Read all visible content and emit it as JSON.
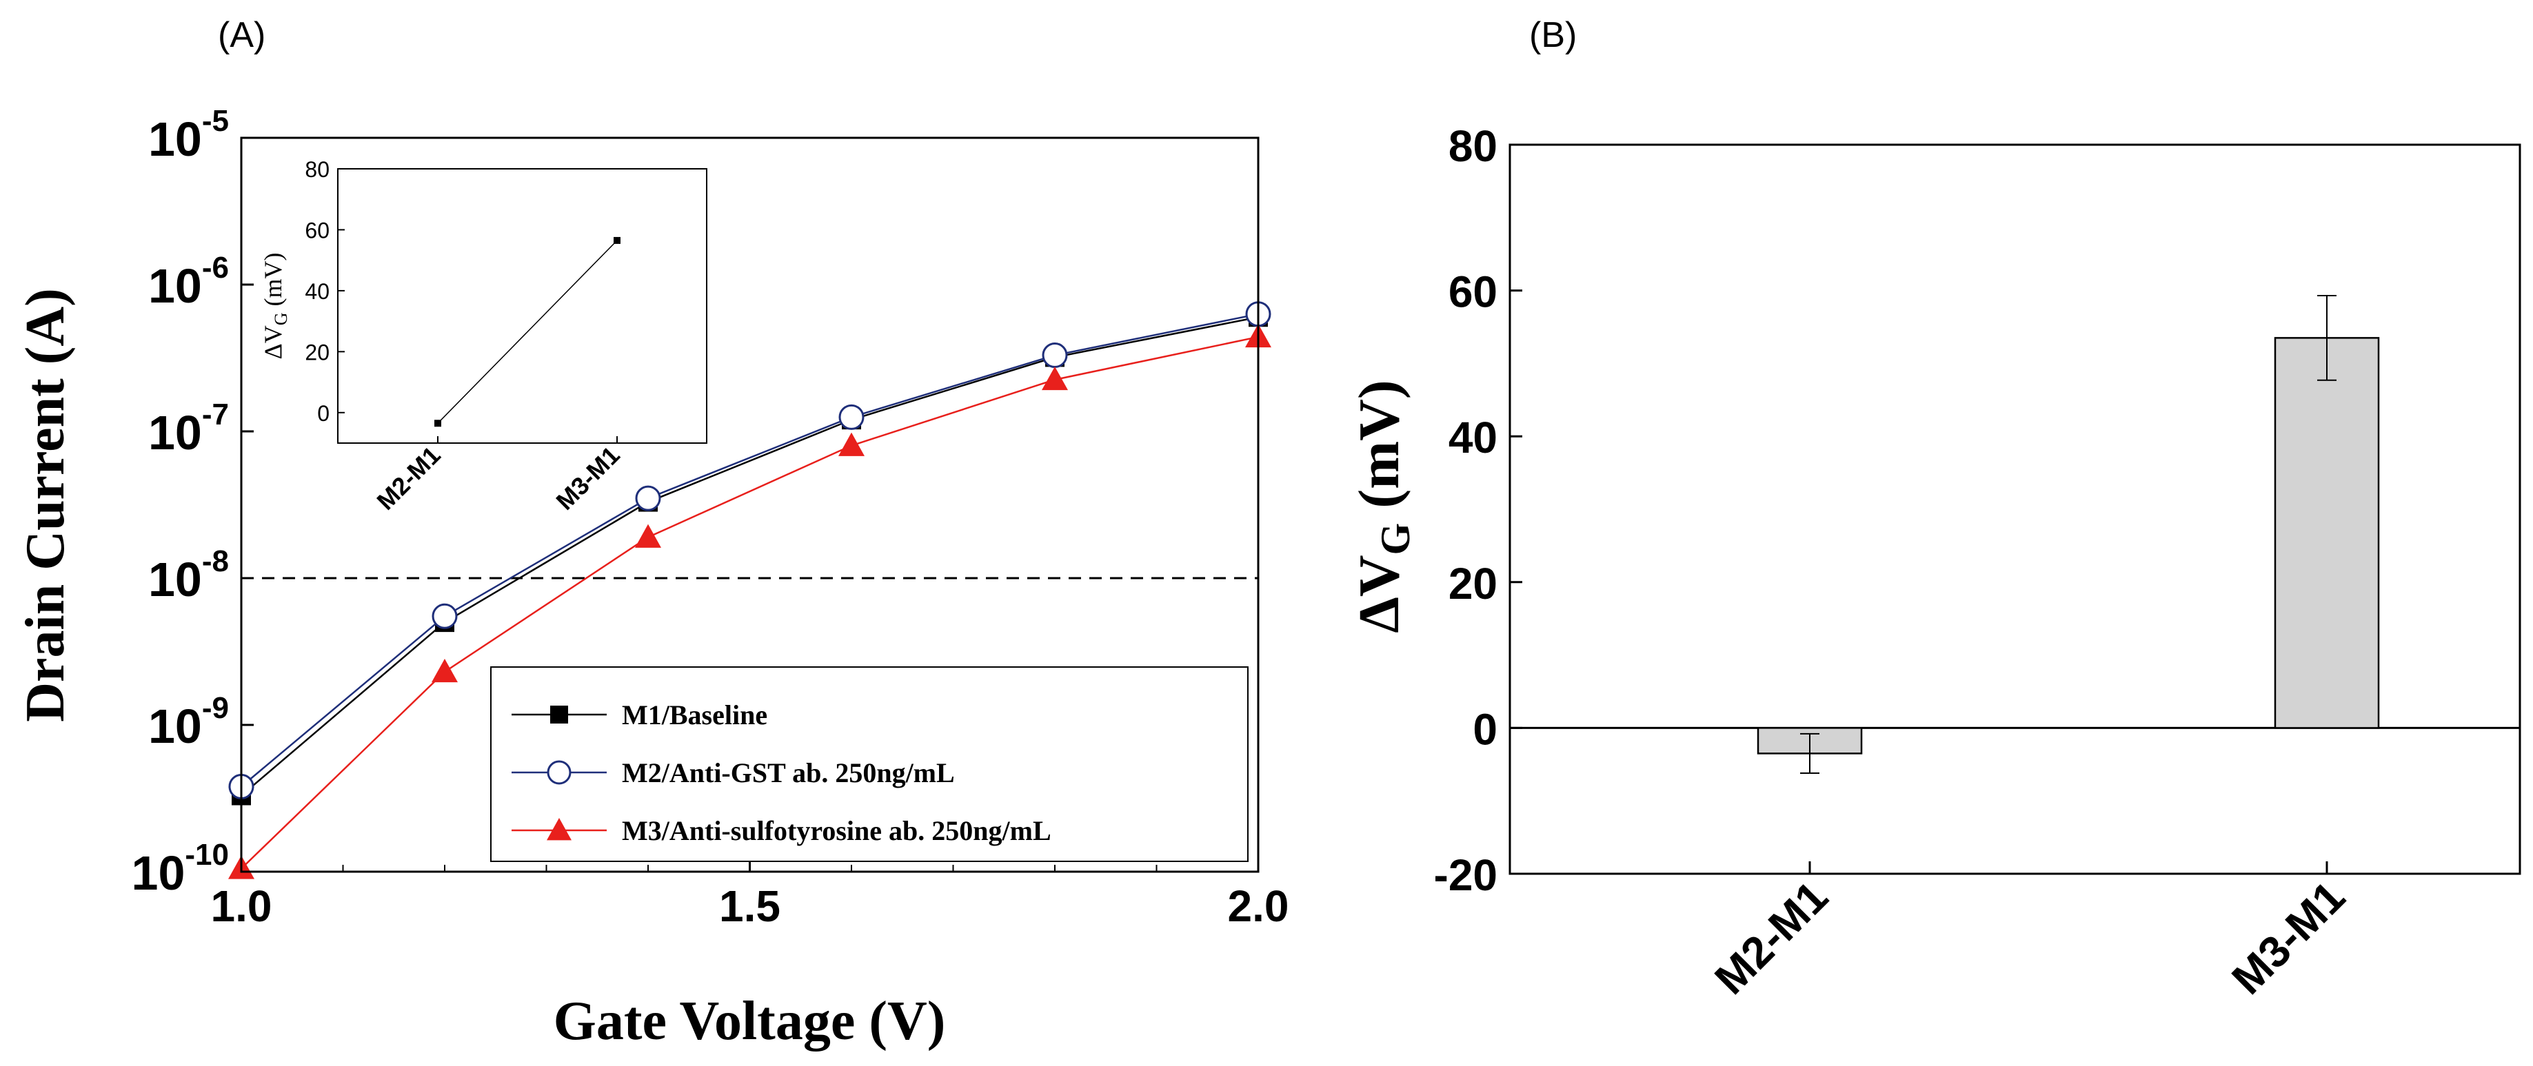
{
  "panel_labels": {
    "a": "(A)",
    "b": "(B)"
  },
  "colors": {
    "m1": "#000000",
    "m2": "#1f2f7a",
    "m3": "#e8201c",
    "bar_fill": "#d3d3d3",
    "dashed": "#000000"
  },
  "chart_data": [
    {
      "type": "line",
      "title": "",
      "xlabel": "Gate Voltage (V)",
      "ylabel": "Drain Current (A)",
      "yscale": "log",
      "xlim": [
        1.0,
        2.0
      ],
      "ylim_exp": [
        -10,
        -5
      ],
      "xticks": [
        {
          "value": 1.0,
          "label": "1.0"
        },
        {
          "value": 1.5,
          "label": "1.5"
        },
        {
          "value": 2.0,
          "label": "2.0"
        }
      ],
      "yticks": [
        {
          "exp": -10,
          "base": "10",
          "sup": "-10"
        },
        {
          "exp": -9,
          "base": "10",
          "sup": "-9"
        },
        {
          "exp": -8,
          "base": "10",
          "sup": "-8"
        },
        {
          "exp": -7,
          "base": "10",
          "sup": "-7"
        },
        {
          "exp": -6,
          "base": "10",
          "sup": "-6"
        },
        {
          "exp": -5,
          "base": "10",
          "sup": "-5"
        }
      ],
      "reference_line": {
        "value": 1e-08,
        "style": "dashed"
      },
      "x": [
        1.0,
        1.2,
        1.4,
        1.6,
        1.8,
        2.0
      ],
      "series": [
        {
          "key": "m1",
          "name": "M1/Baseline",
          "marker": "square",
          "values": [
            3.3e-10,
            5e-09,
            3.3e-08,
            1.2e-07,
            3.2e-07,
            6e-07
          ]
        },
        {
          "key": "m2",
          "name": "M2/Anti-GST ab. 250ng/mL",
          "marker": "circle",
          "values": [
            3.8e-10,
            5.5e-09,
            3.5e-08,
            1.25e-07,
            3.3e-07,
            6.3e-07
          ]
        },
        {
          "key": "m3",
          "name": "M3/Anti-sulfotyrosine ab. 250ng/mL",
          "marker": "triangle",
          "values": [
            1.05e-10,
            2.3e-09,
            1.9e-08,
            8e-08,
            2.25e-07,
            4.4e-07
          ]
        }
      ],
      "legend": "bottom-right",
      "inset": {
        "type": "line",
        "ylabel_main": "ΔV",
        "ylabel_sub": "G",
        "ylabel_unit": " (mV)",
        "ylim": [
          -10,
          80
        ],
        "yticks": [
          0,
          20,
          40,
          60,
          80
        ],
        "categories": [
          "M2-M1",
          "M3-M1"
        ],
        "values": [
          -3.5,
          56.5
        ]
      }
    },
    {
      "type": "bar",
      "title": "",
      "xlabel": "",
      "ylabel_main": "ΔV",
      "ylabel_sub": "G",
      "ylabel_unit": " (mV)",
      "ylim": [
        -20,
        80
      ],
      "yticks": [
        -20,
        0,
        20,
        40,
        60,
        80
      ],
      "categories": [
        "M2-M1",
        "M3-M1"
      ],
      "values": [
        -3.5,
        53.5
      ],
      "errors": [
        2.7,
        5.8
      ]
    }
  ]
}
